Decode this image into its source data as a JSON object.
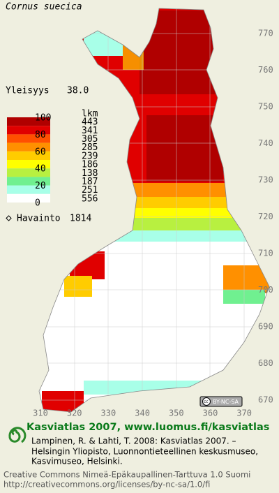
{
  "header": {
    "species": "Cornus suecica",
    "frequency_label": "Yleisyys",
    "frequency": "38.0"
  },
  "legend": {
    "count_header": "lkm",
    "scale_labels": [
      "100",
      "80",
      "60",
      "40",
      "20",
      "0"
    ],
    "classes": [
      {
        "color": "#b00000",
        "count": "443"
      },
      {
        "color": "#e00000",
        "count": "341"
      },
      {
        "color": "#ff5000",
        "count": "305"
      },
      {
        "color": "#ff9000",
        "count": "285"
      },
      {
        "color": "#ffcc00",
        "count": "239"
      },
      {
        "color": "#ffff00",
        "count": "186"
      },
      {
        "color": "#b8f040",
        "count": "138"
      },
      {
        "color": "#70f090",
        "count": "187"
      },
      {
        "color": "#a8ffe8",
        "count": "251"
      },
      {
        "color": "#ffffff",
        "count": "556"
      }
    ],
    "observation_label": "Havainto",
    "observations": "1814"
  },
  "axes": {
    "north": [
      "770",
      "760",
      "750",
      "740",
      "730",
      "720",
      "710",
      "700",
      "690",
      "680",
      "670"
    ],
    "east": [
      "310",
      "320",
      "330",
      "340",
      "350",
      "360",
      "370"
    ]
  },
  "badge": "BY-NC-SA",
  "footer": {
    "brand": "Kasviatlas 2007, www.luomus.fi/kasviatlas",
    "citation": [
      "Lampinen, R. & Lahti, T. 2008: Kasviatlas 2007. –",
      "Helsingin Yliopisto, Luonnontieteellinen keskusmuseo,",
      "Kasvimuseo, Helsinki."
    ],
    "license": [
      "Creative Commons Nimeä-Epäkaupallinen-Tarttuva 1.0 Suomi",
      "http://creativecommons.org/licenses/by-nc-sa/1.0/fi"
    ]
  }
}
